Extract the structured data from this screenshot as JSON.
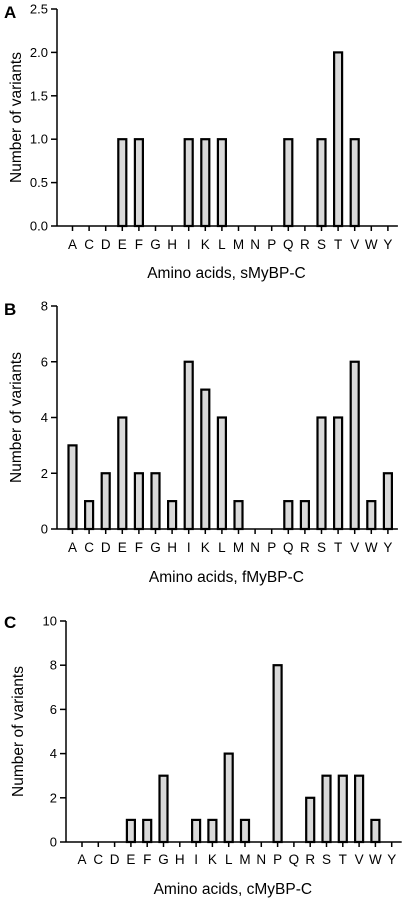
{
  "chart_data": [
    {
      "type": "bar",
      "panel": "A",
      "categories": [
        "A",
        "C",
        "D",
        "E",
        "F",
        "G",
        "H",
        "I",
        "K",
        "L",
        "M",
        "N",
        "P",
        "Q",
        "R",
        "S",
        "T",
        "V",
        "W",
        "Y"
      ],
      "values": [
        0,
        0,
        0,
        1,
        1,
        0,
        0,
        1,
        1,
        1,
        0,
        0,
        0,
        1,
        0,
        1,
        2,
        1,
        0,
        0
      ],
      "xlabel": "Amino acids, sMyBP-C",
      "ylabel": "Number of variants",
      "ylim": [
        0,
        2.5
      ],
      "yticks": [
        "0.0",
        "0.5",
        "1.0",
        "1.5",
        "2.0",
        "2.5"
      ],
      "grid": false,
      "bar_color": "#d9d9d9"
    },
    {
      "type": "bar",
      "panel": "B",
      "categories": [
        "A",
        "C",
        "D",
        "E",
        "F",
        "G",
        "H",
        "I",
        "K",
        "L",
        "M",
        "N",
        "P",
        "Q",
        "R",
        "S",
        "T",
        "V",
        "W",
        "Y"
      ],
      "values": [
        3,
        1,
        2,
        4,
        2,
        2,
        1,
        6,
        5,
        4,
        1,
        0,
        0,
        1,
        1,
        4,
        4,
        6,
        1,
        2
      ],
      "xlabel": "Amino acids, fMyBP-C",
      "ylabel": "Number of variants",
      "ylim": [
        0,
        8
      ],
      "yticks": [
        "0",
        "2",
        "4",
        "6",
        "8"
      ],
      "grid": false,
      "bar_color": "#d9d9d9"
    },
    {
      "type": "bar",
      "panel": "C",
      "categories": [
        "A",
        "C",
        "D",
        "E",
        "F",
        "G",
        "H",
        "I",
        "K",
        "L",
        "M",
        "N",
        "P",
        "Q",
        "R",
        "S",
        "T",
        "V",
        "W",
        "Y"
      ],
      "values": [
        0,
        0,
        0,
        1,
        1,
        3,
        0,
        1,
        1,
        4,
        1,
        0,
        8,
        0,
        2,
        3,
        3,
        3,
        1,
        0
      ],
      "xlabel": "Amino acids, cMyBP-C",
      "ylabel": "Number of variants",
      "ylim": [
        0,
        10
      ],
      "yticks": [
        "0",
        "2",
        "4",
        "6",
        "8",
        "10"
      ],
      "grid": false,
      "bar_color": "#d9d9d9"
    }
  ]
}
